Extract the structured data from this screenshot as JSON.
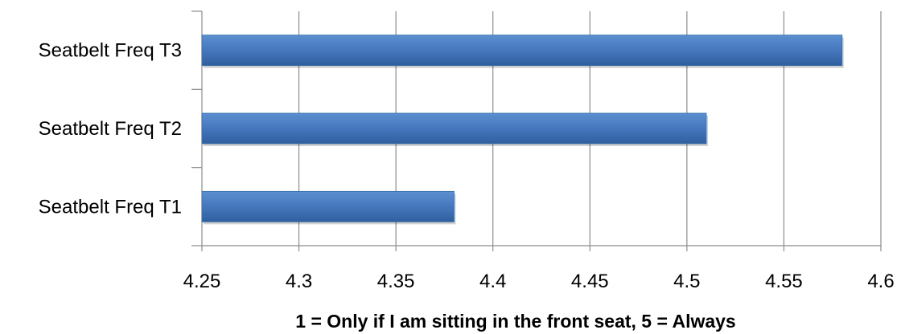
{
  "chart_data": {
    "type": "bar",
    "orientation": "horizontal",
    "title": "",
    "xlabel": "1 = Only if I am sitting in the front seat, 5 = Always",
    "ylabel": "",
    "categories": [
      "Seatbelt Freq T1",
      "Seatbelt Freq T2",
      "Seatbelt Freq T3"
    ],
    "values": [
      4.38,
      4.51,
      4.58
    ],
    "xlim": [
      4.25,
      4.6
    ],
    "xticks": [
      "4.25",
      "4.3",
      "4.35",
      "4.4",
      "4.45",
      "4.5",
      "4.55",
      "4.6"
    ],
    "grid": "vertical",
    "legend": "none",
    "colors": {
      "bar": "#4f81bd",
      "bar_edge": "#3a6ea8",
      "grid": "#8c8c8c"
    }
  }
}
